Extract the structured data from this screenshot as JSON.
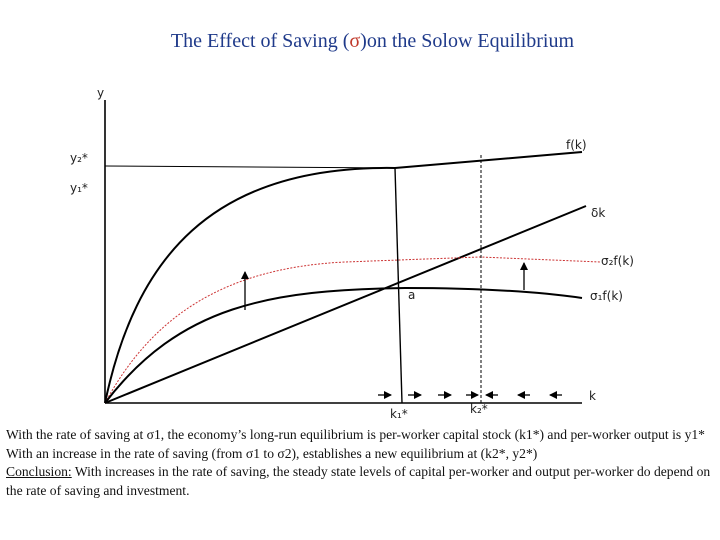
{
  "title": {
    "before": "The Effect of Saving (",
    "symbol": "σ",
    "after": ")on the Solow Equilibrium"
  },
  "axis_labels": {
    "y_axis": "y",
    "x_axis": "k",
    "y2_star": "y₂*",
    "y1_star": "y₁*",
    "k1_star": "k₁*",
    "k2_star": "k₂*"
  },
  "curve_labels": {
    "production": "f(k)",
    "depreciation": "δk",
    "saving_high": "σ₂f(k)",
    "saving_low": "σ₁f(k)",
    "point_a": "a"
  },
  "colors": {
    "title": "#1f3a8a",
    "sigma_symbol": "#c0392b",
    "high_saving_curve": "#cc3333",
    "lines": "#000000"
  },
  "caption": {
    "line1": "With the rate of saving at σ1, the economy’s long-run equilibrium is per-worker capital stock (k1*) and per-worker output is y1*",
    "line2": "With an increase in the rate of saving (from σ1 to σ2), establishes a new equilibrium at (k2*, y2*)",
    "conclusion_label": "Conclusion:",
    "conclusion_text": " With increases in the rate of saving, the steady state levels of capital per-worker and output per-worker do depend on the rate of saving and investment."
  }
}
